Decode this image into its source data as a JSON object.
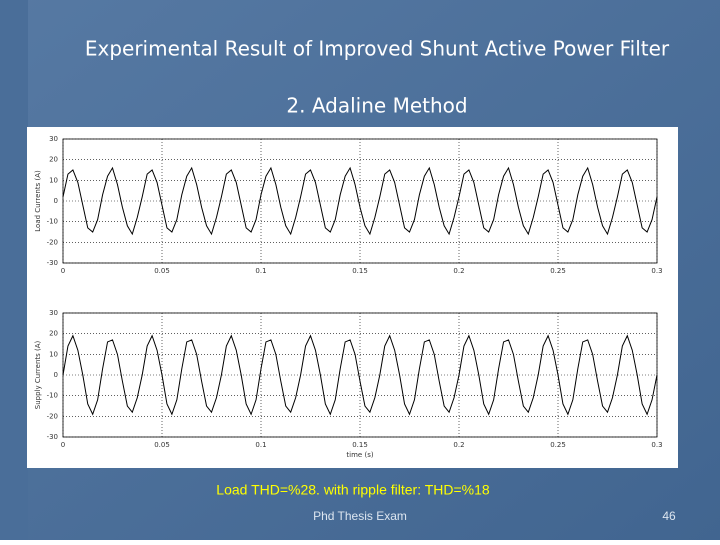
{
  "slide": {
    "title": "Experimental Result of Improved  Shunt Active Power Filter",
    "subtitle": "2. Adaline Method",
    "caption": "Load THD=%28.  with ripple filter: THD=%18",
    "footer": "Phd Thesis Exam",
    "page_number": 46
  },
  "chart_data": [
    {
      "type": "line",
      "ylabel": "Load Currents (A)",
      "grid": true,
      "xlim": [
        0,
        0.3
      ],
      "xticks": [
        0,
        0.05,
        0.1,
        0.15,
        0.2,
        0.25,
        0.3
      ],
      "ylim": [
        -30,
        30
      ],
      "yticks": [
        -30,
        -20,
        -10,
        0,
        10,
        20,
        30
      ],
      "x": [
        0,
        0.0025,
        0.005,
        0.0075,
        0.01,
        0.0125,
        0.015,
        0.0175,
        0.02,
        0.0225,
        0.025,
        0.0275,
        0.03,
        0.0325,
        0.035,
        0.0375,
        0.04,
        0.0425,
        0.045,
        0.0475,
        0.05,
        0.0525,
        0.055,
        0.0575,
        0.06,
        0.0625,
        0.065,
        0.0675,
        0.07,
        0.0725,
        0.075,
        0.0775,
        0.08,
        0.0825,
        0.085,
        0.0875,
        0.09,
        0.0925,
        0.095,
        0.0975,
        0.1,
        0.1025,
        0.105,
        0.1075,
        0.11,
        0.1125,
        0.115,
        0.1175,
        0.12,
        0.1225,
        0.125,
        0.1275,
        0.13,
        0.1325,
        0.135,
        0.1375,
        0.14,
        0.1425,
        0.145,
        0.1475,
        0.15,
        0.1525,
        0.155,
        0.1575,
        0.16,
        0.1625,
        0.165,
        0.1675,
        0.17,
        0.1725,
        0.175,
        0.1775,
        0.18,
        0.1825,
        0.185,
        0.1875,
        0.19,
        0.1925,
        0.195,
        0.1975,
        0.2,
        0.2025,
        0.205,
        0.2075,
        0.21,
        0.2125,
        0.215,
        0.2175,
        0.22,
        0.2225,
        0.225,
        0.2275,
        0.23,
        0.2325,
        0.235,
        0.2375,
        0.24,
        0.2425,
        0.245,
        0.2475,
        0.25,
        0.2525,
        0.255,
        0.2575,
        0.26,
        0.2625,
        0.265,
        0.2675,
        0.27,
        0.2725,
        0.275,
        0.2775,
        0.28,
        0.2825,
        0.285,
        0.2875,
        0.29,
        0.2925,
        0.295,
        0.2975,
        0.3
      ],
      "series": [
        {
          "color": "#000000",
          "values": [
            2,
            13,
            15,
            9,
            -2,
            -13,
            -15,
            -9,
            3,
            12,
            16,
            8,
            -3,
            -12,
            -16,
            -8,
            2,
            13,
            15,
            9,
            -2,
            -13,
            -15,
            -9,
            3,
            12,
            16,
            8,
            -3,
            -12,
            -16,
            -8,
            2,
            13,
            15,
            9,
            -2,
            -13,
            -15,
            -9,
            3,
            12,
            16,
            8,
            -3,
            -12,
            -16,
            -8,
            2,
            13,
            15,
            9,
            -2,
            -13,
            -15,
            -9,
            3,
            12,
            16,
            8,
            -3,
            -12,
            -16,
            -8,
            2,
            13,
            15,
            9,
            -2,
            -13,
            -15,
            -9,
            3,
            12,
            16,
            8,
            -3,
            -12,
            -16,
            -8,
            2,
            13,
            15,
            9,
            -2,
            -13,
            -15,
            -9,
            3,
            12,
            16,
            8,
            -3,
            -12,
            -16,
            -8,
            2,
            13,
            15,
            9,
            -2,
            -13,
            -15,
            -9,
            3,
            12,
            16,
            8,
            -3,
            -12,
            -16,
            -8,
            2,
            13,
            15,
            9,
            -2,
            -13,
            -15,
            -9,
            2
          ]
        }
      ]
    },
    {
      "type": "line",
      "ylabel": "Supply Currents (A)",
      "xlabel": "time (s)",
      "grid": true,
      "xlim": [
        0,
        0.3
      ],
      "xticks": [
        0,
        0.05,
        0.1,
        0.15,
        0.2,
        0.25,
        0.3
      ],
      "ylim": [
        -30,
        30
      ],
      "yticks": [
        -30,
        -20,
        -10,
        0,
        10,
        20,
        30
      ],
      "x": [
        0,
        0.0025,
        0.005,
        0.0075,
        0.01,
        0.0125,
        0.015,
        0.0175,
        0.02,
        0.0225,
        0.025,
        0.0275,
        0.03,
        0.0325,
        0.035,
        0.0375,
        0.04,
        0.0425,
        0.045,
        0.0475,
        0.05,
        0.0525,
        0.055,
        0.0575,
        0.06,
        0.0625,
        0.065,
        0.0675,
        0.07,
        0.0725,
        0.075,
        0.0775,
        0.08,
        0.0825,
        0.085,
        0.0875,
        0.09,
        0.0925,
        0.095,
        0.0975,
        0.1,
        0.1025,
        0.105,
        0.1075,
        0.11,
        0.1125,
        0.115,
        0.1175,
        0.12,
        0.1225,
        0.125,
        0.1275,
        0.13,
        0.1325,
        0.135,
        0.1375,
        0.14,
        0.1425,
        0.145,
        0.1475,
        0.15,
        0.1525,
        0.155,
        0.1575,
        0.16,
        0.1625,
        0.165,
        0.1675,
        0.17,
        0.1725,
        0.175,
        0.1775,
        0.18,
        0.1825,
        0.185,
        0.1875,
        0.19,
        0.1925,
        0.195,
        0.1975,
        0.2,
        0.2025,
        0.205,
        0.2075,
        0.21,
        0.2125,
        0.215,
        0.2175,
        0.22,
        0.2225,
        0.225,
        0.2275,
        0.23,
        0.2325,
        0.235,
        0.2375,
        0.24,
        0.2425,
        0.245,
        0.2475,
        0.25,
        0.2525,
        0.255,
        0.2575,
        0.26,
        0.2625,
        0.265,
        0.2675,
        0.27,
        0.2725,
        0.275,
        0.2775,
        0.28,
        0.2825,
        0.285,
        0.2875,
        0.29,
        0.2925,
        0.295,
        0.2975,
        0.3
      ],
      "series": [
        {
          "color": "#000000",
          "values": [
            0,
            14,
            19,
            12,
            0,
            -14,
            -19,
            -12,
            3,
            16,
            17,
            10,
            -3,
            -15,
            -18,
            -11,
            0,
            14,
            19,
            12,
            0,
            -14,
            -19,
            -12,
            3,
            16,
            17,
            10,
            -3,
            -15,
            -18,
            -11,
            0,
            14,
            19,
            12,
            0,
            -14,
            -19,
            -12,
            3,
            16,
            17,
            10,
            -3,
            -15,
            -18,
            -11,
            0,
            14,
            19,
            12,
            0,
            -14,
            -19,
            -12,
            3,
            16,
            17,
            10,
            -3,
            -15,
            -18,
            -11,
            0,
            14,
            19,
            12,
            0,
            -14,
            -19,
            -12,
            3,
            16,
            17,
            10,
            -3,
            -15,
            -18,
            -11,
            0,
            14,
            19,
            12,
            0,
            -14,
            -19,
            -12,
            3,
            16,
            17,
            10,
            -3,
            -15,
            -18,
            -11,
            0,
            14,
            19,
            12,
            0,
            -14,
            -19,
            -12,
            3,
            16,
            17,
            10,
            -3,
            -15,
            -18,
            -11,
            0,
            14,
            19,
            12,
            0,
            -14,
            -19,
            -12,
            0
          ]
        }
      ]
    }
  ]
}
